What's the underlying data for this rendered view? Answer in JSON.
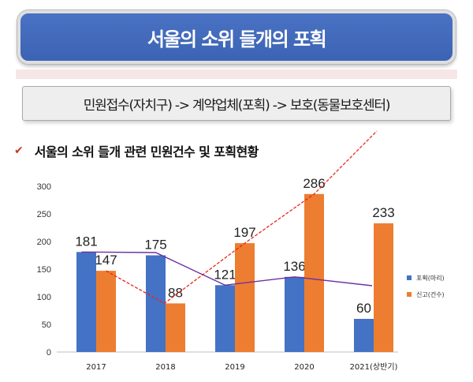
{
  "header": {
    "title": "서울의 소위 들개의 포획",
    "process": "민원접수(자치구) -> 계약업체(포획) -> 보호(동물보호센터)",
    "check_icon": "✔"
  },
  "colors": {
    "banner": "#4169b9",
    "bar_blue": "#4472c4",
    "bar_orange": "#ed7d31",
    "trend_purple": "#7030a0",
    "trend_red": "#e8261c"
  },
  "chart_data": {
    "type": "bar",
    "title": "서울의 소위 들개 관련 민원건수 및 포획현황",
    "categories": [
      "2017",
      "2018",
      "2019",
      "2020",
      "2021(상반기)"
    ],
    "series": [
      {
        "name": "포획(마리)",
        "values": [
          181,
          175,
          121,
          136,
          60
        ]
      },
      {
        "name": "신고(건수)",
        "values": [
          147,
          88,
          197,
          286,
          233
        ]
      }
    ],
    "y_ticks": [
      "0",
      "50",
      "100",
      "150",
      "200",
      "250",
      "300"
    ],
    "ylim": [
      0,
      300
    ],
    "legend_position": "right",
    "grid": false,
    "trend_lines": [
      {
        "series": "포획(마리)",
        "values": [
          181,
          180,
          121,
          136,
          120
        ]
      },
      {
        "series": "신고(건수)",
        "values": [
          147,
          88,
          197,
          286,
          400
        ]
      }
    ]
  }
}
